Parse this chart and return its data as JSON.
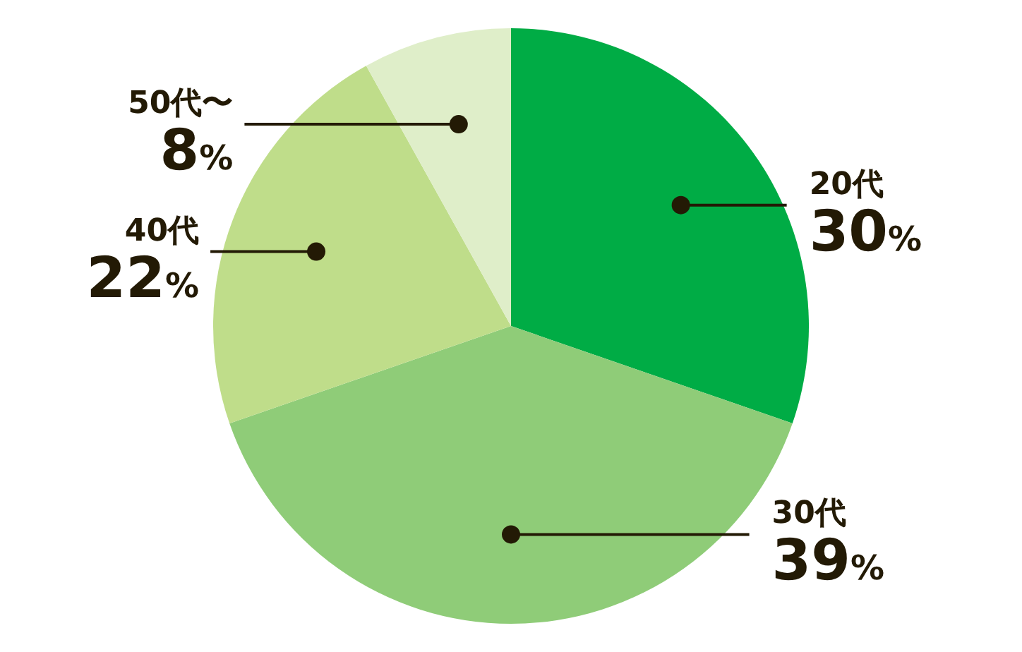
{
  "chart_data": {
    "type": "pie",
    "categories": [
      "20代",
      "30代",
      "40代",
      "50代〜"
    ],
    "values": [
      30,
      39,
      22,
      8
    ],
    "colors": [
      "#00ac45",
      "#8fcc78",
      "#bfdd8a",
      "#dfeec9"
    ],
    "value_labels": [
      "30%",
      "39%",
      "22%",
      "8%"
    ]
  }
}
